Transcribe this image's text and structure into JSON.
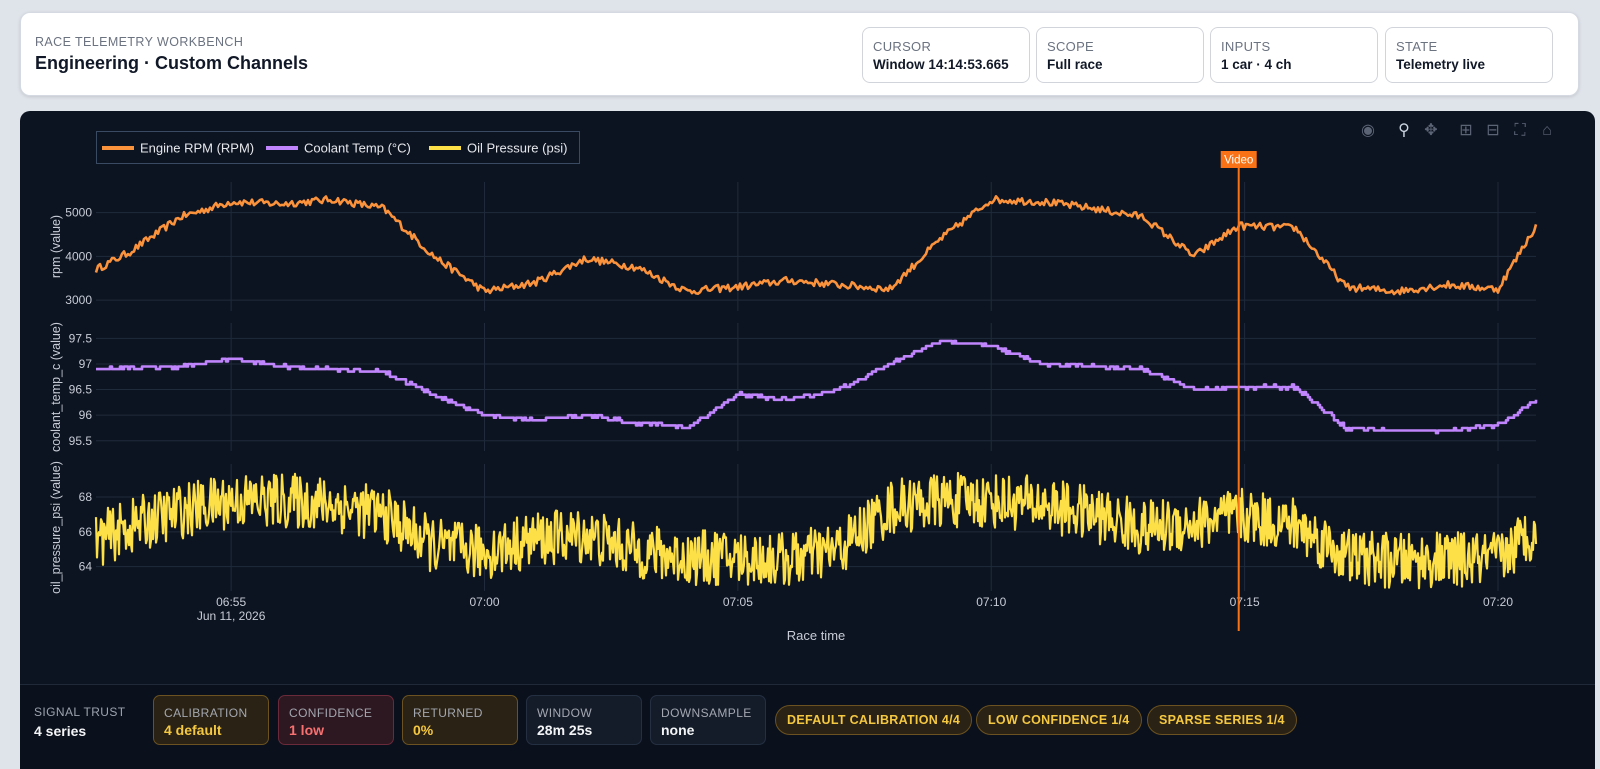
{
  "header": {
    "eyebrow": "RACE TELEMETRY WORKBENCH",
    "title": "Engineering · Custom Channels",
    "stats": [
      {
        "label": "CURSOR",
        "value": "Window 14:14:53.665"
      },
      {
        "label": "SCOPE",
        "value": "Full race"
      },
      {
        "label": "INPUTS",
        "value": "1 car · 4 ch"
      },
      {
        "label": "STATE",
        "value": "Telemetry live"
      }
    ]
  },
  "toolbar": {
    "icons": [
      "camera-icon",
      "zoom-icon",
      "pan-icon",
      "zoom-in-icon",
      "zoom-out-icon",
      "autoscale-icon",
      "reset-axes-icon"
    ]
  },
  "chart_data": {
    "type": "line",
    "xlabel": "Race time",
    "x_ticks": [
      "06:55",
      "07:00",
      "07:05",
      "07:10",
      "07:15",
      "07:20"
    ],
    "x_tick_sublabel": "Jun 11, 2026",
    "x_range": [
      "06:52:20",
      "07:20:45"
    ],
    "cursor": {
      "label": "Video",
      "time": "07:14:53",
      "color": "#f97316"
    },
    "legend": {
      "placement": "top-left"
    },
    "grid": true,
    "series": [
      {
        "name": "Engine RPM (RPM)",
        "ylabel": "rpm (value)",
        "color": "#fb923c",
        "yticks": [
          3000,
          4000,
          5000
        ],
        "ylim": [
          2750,
          5700
        ],
        "times": [
          "06:52:20",
          "06:53:00",
          "06:54:00",
          "06:55:00",
          "06:56:00",
          "06:57:00",
          "06:58:00",
          "06:59:00",
          "07:00:00",
          "07:01:00",
          "07:02:00",
          "07:03:00",
          "07:04:00",
          "07:05:00",
          "07:06:00",
          "07:07:00",
          "07:08:00",
          "07:09:00",
          "07:10:00",
          "07:11:00",
          "07:12:00",
          "07:13:00",
          "07:14:00",
          "07:14:53",
          "07:16:00",
          "07:17:00",
          "07:18:00",
          "07:19:00",
          "07:20:00",
          "07:20:45"
        ],
        "values": [
          3700,
          4100,
          4900,
          5250,
          5200,
          5300,
          5100,
          4000,
          3200,
          3400,
          3950,
          3750,
          3200,
          3300,
          3450,
          3350,
          3250,
          4400,
          5300,
          5250,
          5100,
          4900,
          4000,
          4700,
          4650,
          3300,
          3200,
          3350,
          3250,
          4700
        ]
      },
      {
        "name": "Coolant Temp (°C)",
        "ylabel": "coolant_temp_c (value)",
        "color": "#c084fc",
        "yticks": [
          95.5,
          96,
          96.5,
          97,
          97.5
        ],
        "ylim": [
          95.3,
          97.8
        ],
        "times": [
          "06:52:20",
          "06:54:00",
          "06:55:00",
          "06:56:00",
          "06:57:00",
          "06:58:00",
          "06:59:00",
          "07:00:00",
          "07:01:00",
          "07:02:00",
          "07:03:00",
          "07:04:00",
          "07:05:00",
          "07:06:00",
          "07:07:00",
          "07:08:00",
          "07:09:00",
          "07:10:00",
          "07:11:00",
          "07:12:00",
          "07:13:00",
          "07:14:00",
          "07:14:53",
          "07:16:00",
          "07:17:00",
          "07:18:00",
          "07:19:00",
          "07:20:00",
          "07:20:45"
        ],
        "values": [
          96.9,
          96.95,
          97.1,
          96.95,
          96.9,
          96.85,
          96.4,
          96.0,
          95.9,
          96.0,
          95.85,
          95.75,
          96.4,
          96.3,
          96.5,
          97.0,
          97.45,
          97.35,
          97.0,
          96.95,
          96.9,
          96.5,
          96.55,
          96.55,
          95.75,
          95.7,
          95.7,
          95.8,
          96.3
        ]
      },
      {
        "name": "Oil Pressure (psi)",
        "ylabel": "oil_pressure_psi (value)",
        "color": "#fde047",
        "yticks": [
          64,
          66,
          68
        ],
        "ylim": [
          62.6,
          69.9
        ],
        "times": [
          "06:52:20",
          "06:53:00",
          "06:54:00",
          "06:55:00",
          "06:56:00",
          "06:57:00",
          "06:58:00",
          "06:59:00",
          "07:00:00",
          "07:01:00",
          "07:02:00",
          "07:03:00",
          "07:04:00",
          "07:05:00",
          "07:06:00",
          "07:07:00",
          "07:08:00",
          "07:09:00",
          "07:10:00",
          "07:11:00",
          "07:12:00",
          "07:13:00",
          "07:14:00",
          "07:14:53",
          "07:16:00",
          "07:17:00",
          "07:18:00",
          "07:19:00",
          "07:20:00",
          "07:20:45"
        ],
        "values": [
          65.5,
          66.3,
          67.2,
          67.8,
          67.8,
          67.6,
          67.0,
          65.2,
          64.8,
          65.6,
          65.8,
          64.9,
          64.5,
          64.5,
          64.4,
          65.0,
          67.4,
          67.8,
          67.8,
          67.6,
          67.0,
          66.2,
          66.5,
          66.9,
          66.4,
          64.6,
          64.3,
          64.4,
          64.4,
          66.2
        ]
      }
    ]
  },
  "footer": {
    "trust_label": "SIGNAL TRUST",
    "trust_value": "4 series",
    "metrics": [
      {
        "label": "CALIBRATION",
        "value": "4 default",
        "bg": "#2a2214",
        "border": "#6b5220",
        "color": "#f5c842"
      },
      {
        "label": "CONFIDENCE",
        "value": "1 low",
        "bg": "#2d1720",
        "border": "#6b2a3a",
        "color": "#f87171"
      },
      {
        "label": "RETURNED",
        "value": "0%",
        "bg": "#2a2214",
        "border": "#6b5220",
        "color": "#f5c842"
      },
      {
        "label": "WINDOW",
        "value": "28m 25s",
        "bg": "#141c2a",
        "border": "#243042",
        "color": "#f3f4f6"
      },
      {
        "label": "DOWNSAMPLE",
        "value": "none",
        "bg": "#141c2a",
        "border": "#243042",
        "color": "#f3f4f6"
      }
    ],
    "pills": [
      "DEFAULT CALIBRATION 4/4",
      "LOW CONFIDENCE 1/4",
      "SPARSE SERIES 1/4"
    ]
  }
}
